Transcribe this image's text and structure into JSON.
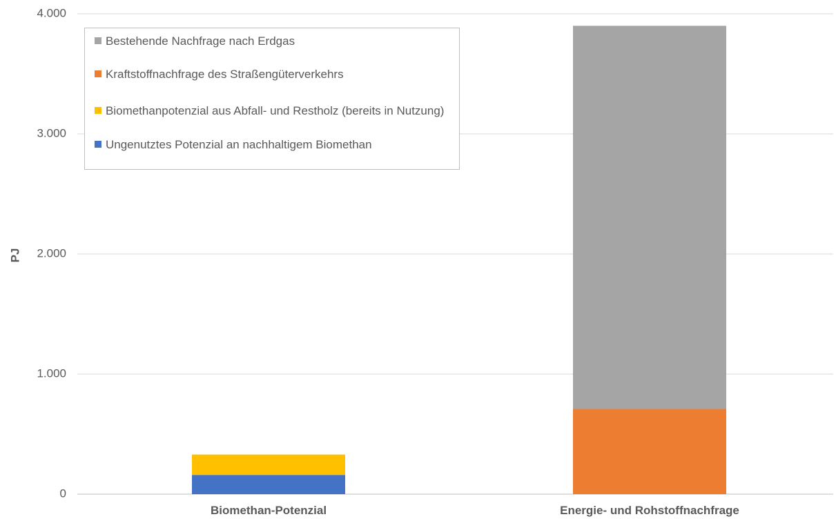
{
  "chart_data": {
    "type": "bar",
    "stacked": true,
    "ylabel": "PJ",
    "ylim": [
      0,
      4000
    ],
    "yticks": [
      0,
      1000,
      2000,
      3000,
      4000
    ],
    "ytick_labels": [
      "0",
      "1.000",
      "2.000",
      "3.000",
      "4.000"
    ],
    "grid": true,
    "categories": [
      "Biomethan-Potenzial",
      "Energie- und Rohstoffnachfrage"
    ],
    "series": [
      {
        "name": "Ungenutztes Potenzial an nachhaltigem Biomethan",
        "color": "#4472C4",
        "values": [
          160,
          0
        ]
      },
      {
        "name": "Biomethanpotenzial aus Abfall- und Restholz (bereits in Nutzung)",
        "color": "#FFC000",
        "values": [
          170,
          0
        ]
      },
      {
        "name": "Kraftstoffnachfrage des Straßengüterverkehrs",
        "color": "#ED7D31",
        "values": [
          0,
          710
        ]
      },
      {
        "name": "Bestehende Nachfrage nach Erdgas",
        "color": "#A5A5A5",
        "values": [
          0,
          3190
        ]
      }
    ],
    "legend_order": [
      3,
      2,
      1,
      0
    ],
    "legend_position": "top-left"
  }
}
